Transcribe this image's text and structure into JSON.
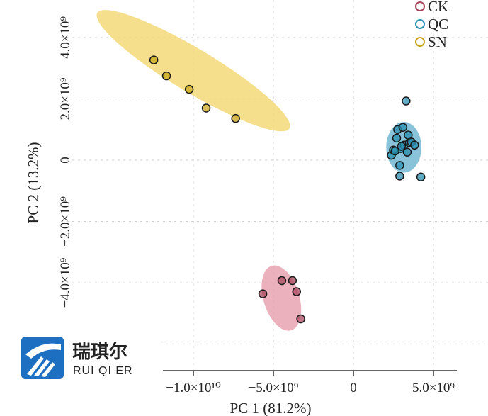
{
  "chart_data": {
    "type": "scatter",
    "title": "",
    "xlabel": "PC 1 (81.2%)",
    "ylabel": "PC 2 (13.2%)",
    "x_ticks": [
      {
        "value": -10000000000,
        "label": "−1.0×10¹⁰"
      },
      {
        "value": -5000000000,
        "label": "−5.0×10⁹"
      },
      {
        "value": 0,
        "label": "0"
      },
      {
        "value": 5000000000,
        "label": "5.0×10⁹"
      }
    ],
    "y_ticks": [
      {
        "value": 4000000000,
        "label": "4.0×10⁹"
      },
      {
        "value": 2000000000,
        "label": "2.0×10⁹"
      },
      {
        "value": 0,
        "label": "0"
      },
      {
        "value": -2000000000,
        "label": "−2.0×10⁹"
      },
      {
        "value": -4000000000,
        "label": "−4.0×10⁹"
      }
    ],
    "grid": true,
    "legend_position": "top-right",
    "series": [
      {
        "name": "CK",
        "color": "#a8485e",
        "ellipse_color": "#e7a3b0",
        "points": [
          [
            -5660000000.0,
            -4360000000.0
          ],
          [
            -4470000000.0,
            -3930000000.0
          ],
          [
            -3810000000.0,
            -3930000000.0
          ],
          [
            -3550000000.0,
            -4290000000.0
          ],
          [
            -3290000000.0,
            -5180000000.0
          ]
        ]
      },
      {
        "name": "QC",
        "color": "#2a8fb0",
        "ellipse_color": "#74b9d4",
        "points": [
          [
            2370000000.0,
            160000000.0
          ],
          [
            2500000000.0,
            330000000.0
          ],
          [
            2700000000.0,
            720000000.0
          ],
          [
            2760000000.0,
            1000000000.0
          ],
          [
            2890000000.0,
            -170000000.0
          ],
          [
            2890000000.0,
            -520000000.0
          ],
          [
            2960000000.0,
            380000000.0
          ],
          [
            3090000000.0,
            1070000000.0
          ],
          [
            3160000000.0,
            490000000.0
          ],
          [
            3290000000.0,
            1930000000.0
          ],
          [
            3360000000.0,
            260000000.0
          ],
          [
            3420000000.0,
            820000000.0
          ],
          [
            3490000000.0,
            570000000.0
          ],
          [
            3620000000.0,
            590000000.0
          ],
          [
            3820000000.0,
            490000000.0
          ],
          [
            4210000000.0,
            -550000000.0
          ],
          [
            2600000000.0,
            300000000.0
          ],
          [
            3000000000.0,
            450000000.0
          ]
        ]
      },
      {
        "name": "SN",
        "color": "#c8a51a",
        "ellipse_color": "#f3d878",
        "points": [
          [
            -12470000000.0,
            3270000000.0
          ],
          [
            -11680000000.0,
            2750000000.0
          ],
          [
            -10260000000.0,
            2310000000.0
          ],
          [
            -9200000000.0,
            1700000000.0
          ],
          [
            -7360000000.0,
            1360000000.0
          ]
        ]
      }
    ],
    "ellipses": [
      {
        "series": "SN",
        "cx": -10000000000.0,
        "cy": 2920000000.0,
        "rx": 7000000000.0,
        "ry": 1350000000.0,
        "angle_deg": 31
      },
      {
        "series": "QC",
        "cx": 3150000000.0,
        "cy": 420000000.0,
        "rx": 1100000000.0,
        "ry": 1580000000.0,
        "angle_deg": 0
      },
      {
        "series": "CK",
        "cx": -4500000000.0,
        "cy": -4500000000.0,
        "rx": 2100000000.0,
        "ry": 1120000000.0,
        "angle_deg": 73
      }
    ]
  },
  "logo": {
    "chinese": "瑞琪尔",
    "english": "RUI QI ER",
    "accent_color": "#1d6fc2"
  }
}
